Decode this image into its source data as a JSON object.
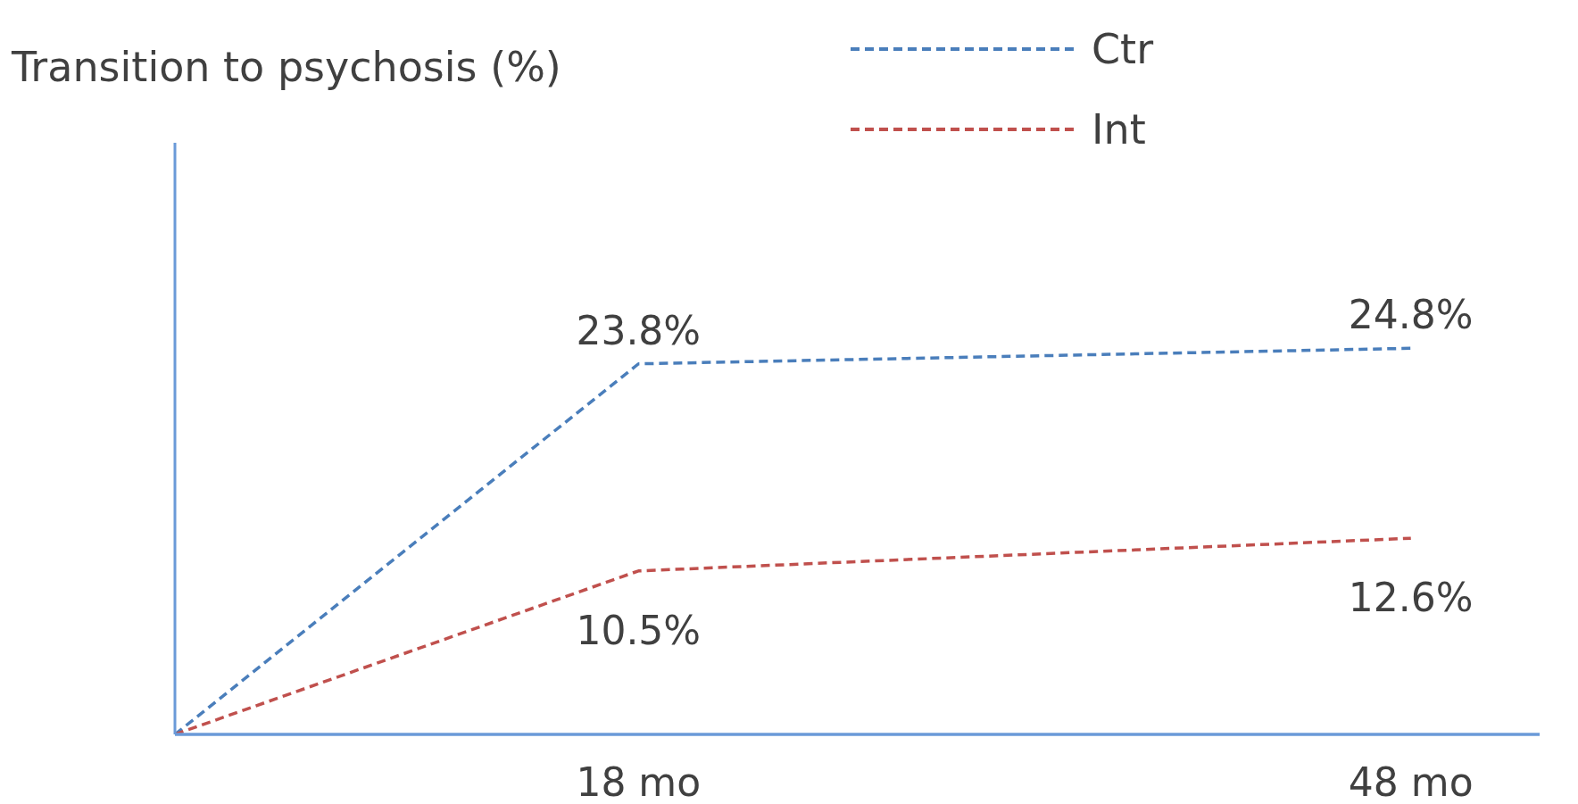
{
  "chart_data": {
    "type": "line",
    "ylabel": "Transition to psychosis (%)",
    "x": [
      0,
      18,
      48
    ],
    "xlim": [
      0,
      53
    ],
    "xticks": [
      {
        "value": 18,
        "label": "18 mo"
      },
      {
        "value": 48,
        "label": "48 mo"
      }
    ],
    "ylim": [
      0,
      38
    ],
    "series": [
      {
        "name": "Ctr",
        "color": "#4a7ebb",
        "values": [
          0,
          23.8,
          24.8
        ],
        "value_labels": [
          null,
          "23.8%",
          "24.8%"
        ]
      },
      {
        "name": "Int",
        "color": "#c0504d",
        "values": [
          0,
          10.5,
          12.6
        ],
        "value_labels": [
          null,
          "10.5%",
          "12.6%"
        ]
      }
    ],
    "line_style": "dashed",
    "marker": "none",
    "grid": false,
    "legend": "top"
  }
}
